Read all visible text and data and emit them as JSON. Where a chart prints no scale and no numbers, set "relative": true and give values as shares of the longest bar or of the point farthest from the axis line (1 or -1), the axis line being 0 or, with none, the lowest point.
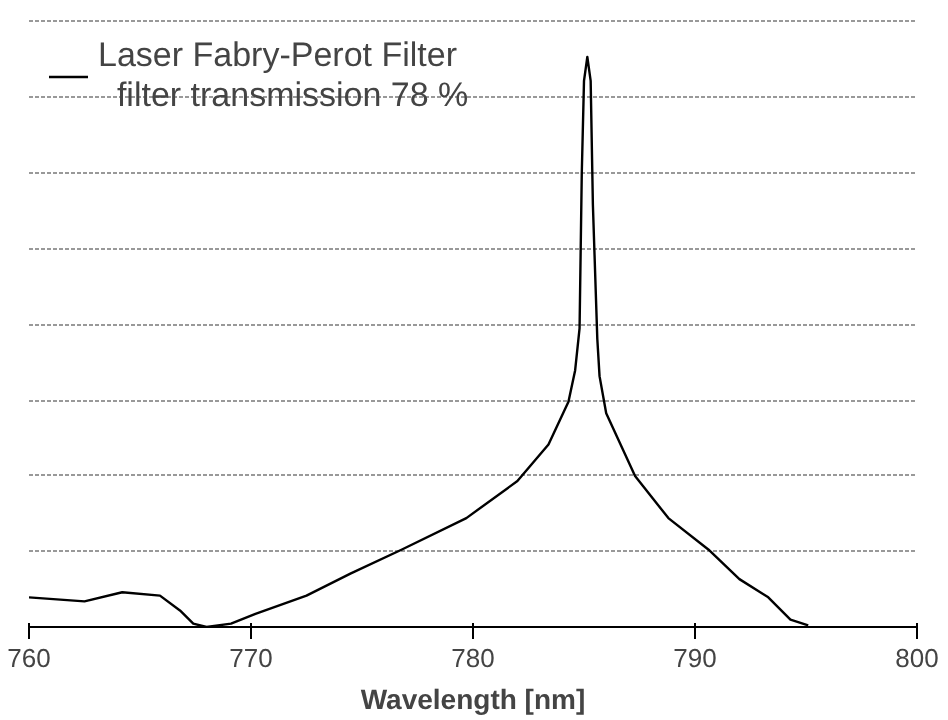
{
  "chart_data": {
    "type": "line",
    "relative": true,
    "xlabel": "Wavelength [nm]",
    "xlim": [
      760,
      800
    ],
    "xticks": [
      760,
      770,
      780,
      790,
      800
    ],
    "grid": "y",
    "legend": "top left",
    "line_style": "solid",
    "x": [
      760.0,
      762.5,
      764.2,
      765.9,
      766.8,
      767.4,
      768.0,
      769.1,
      770.2,
      772.5,
      774.5,
      776.8,
      779.7,
      782.0,
      783.4,
      784.3,
      784.6,
      784.8,
      784.9,
      785.0,
      785.15,
      785.3,
      785.4,
      785.6,
      785.7,
      786.0,
      787.3,
      788.8,
      790.6,
      792.0,
      793.3,
      794.3,
      795.1
    ],
    "series": [
      {
        "name": "Laser Fabry-Perot Filter\n  filter transmission 78 %",
        "color": "#000000",
        "values": [
          0.052,
          0.045,
          0.061,
          0.055,
          0.029,
          0.006,
          0,
          0.006,
          0.023,
          0.055,
          0.094,
          0.136,
          0.191,
          0.256,
          0.32,
          0.395,
          0.45,
          0.524,
          0.796,
          0.958,
          1.0,
          0.958,
          0.741,
          0.505,
          0.44,
          0.375,
          0.265,
          0.191,
          0.136,
          0.084,
          0.052,
          0.013,
          0.003
        ]
      }
    ]
  }
}
